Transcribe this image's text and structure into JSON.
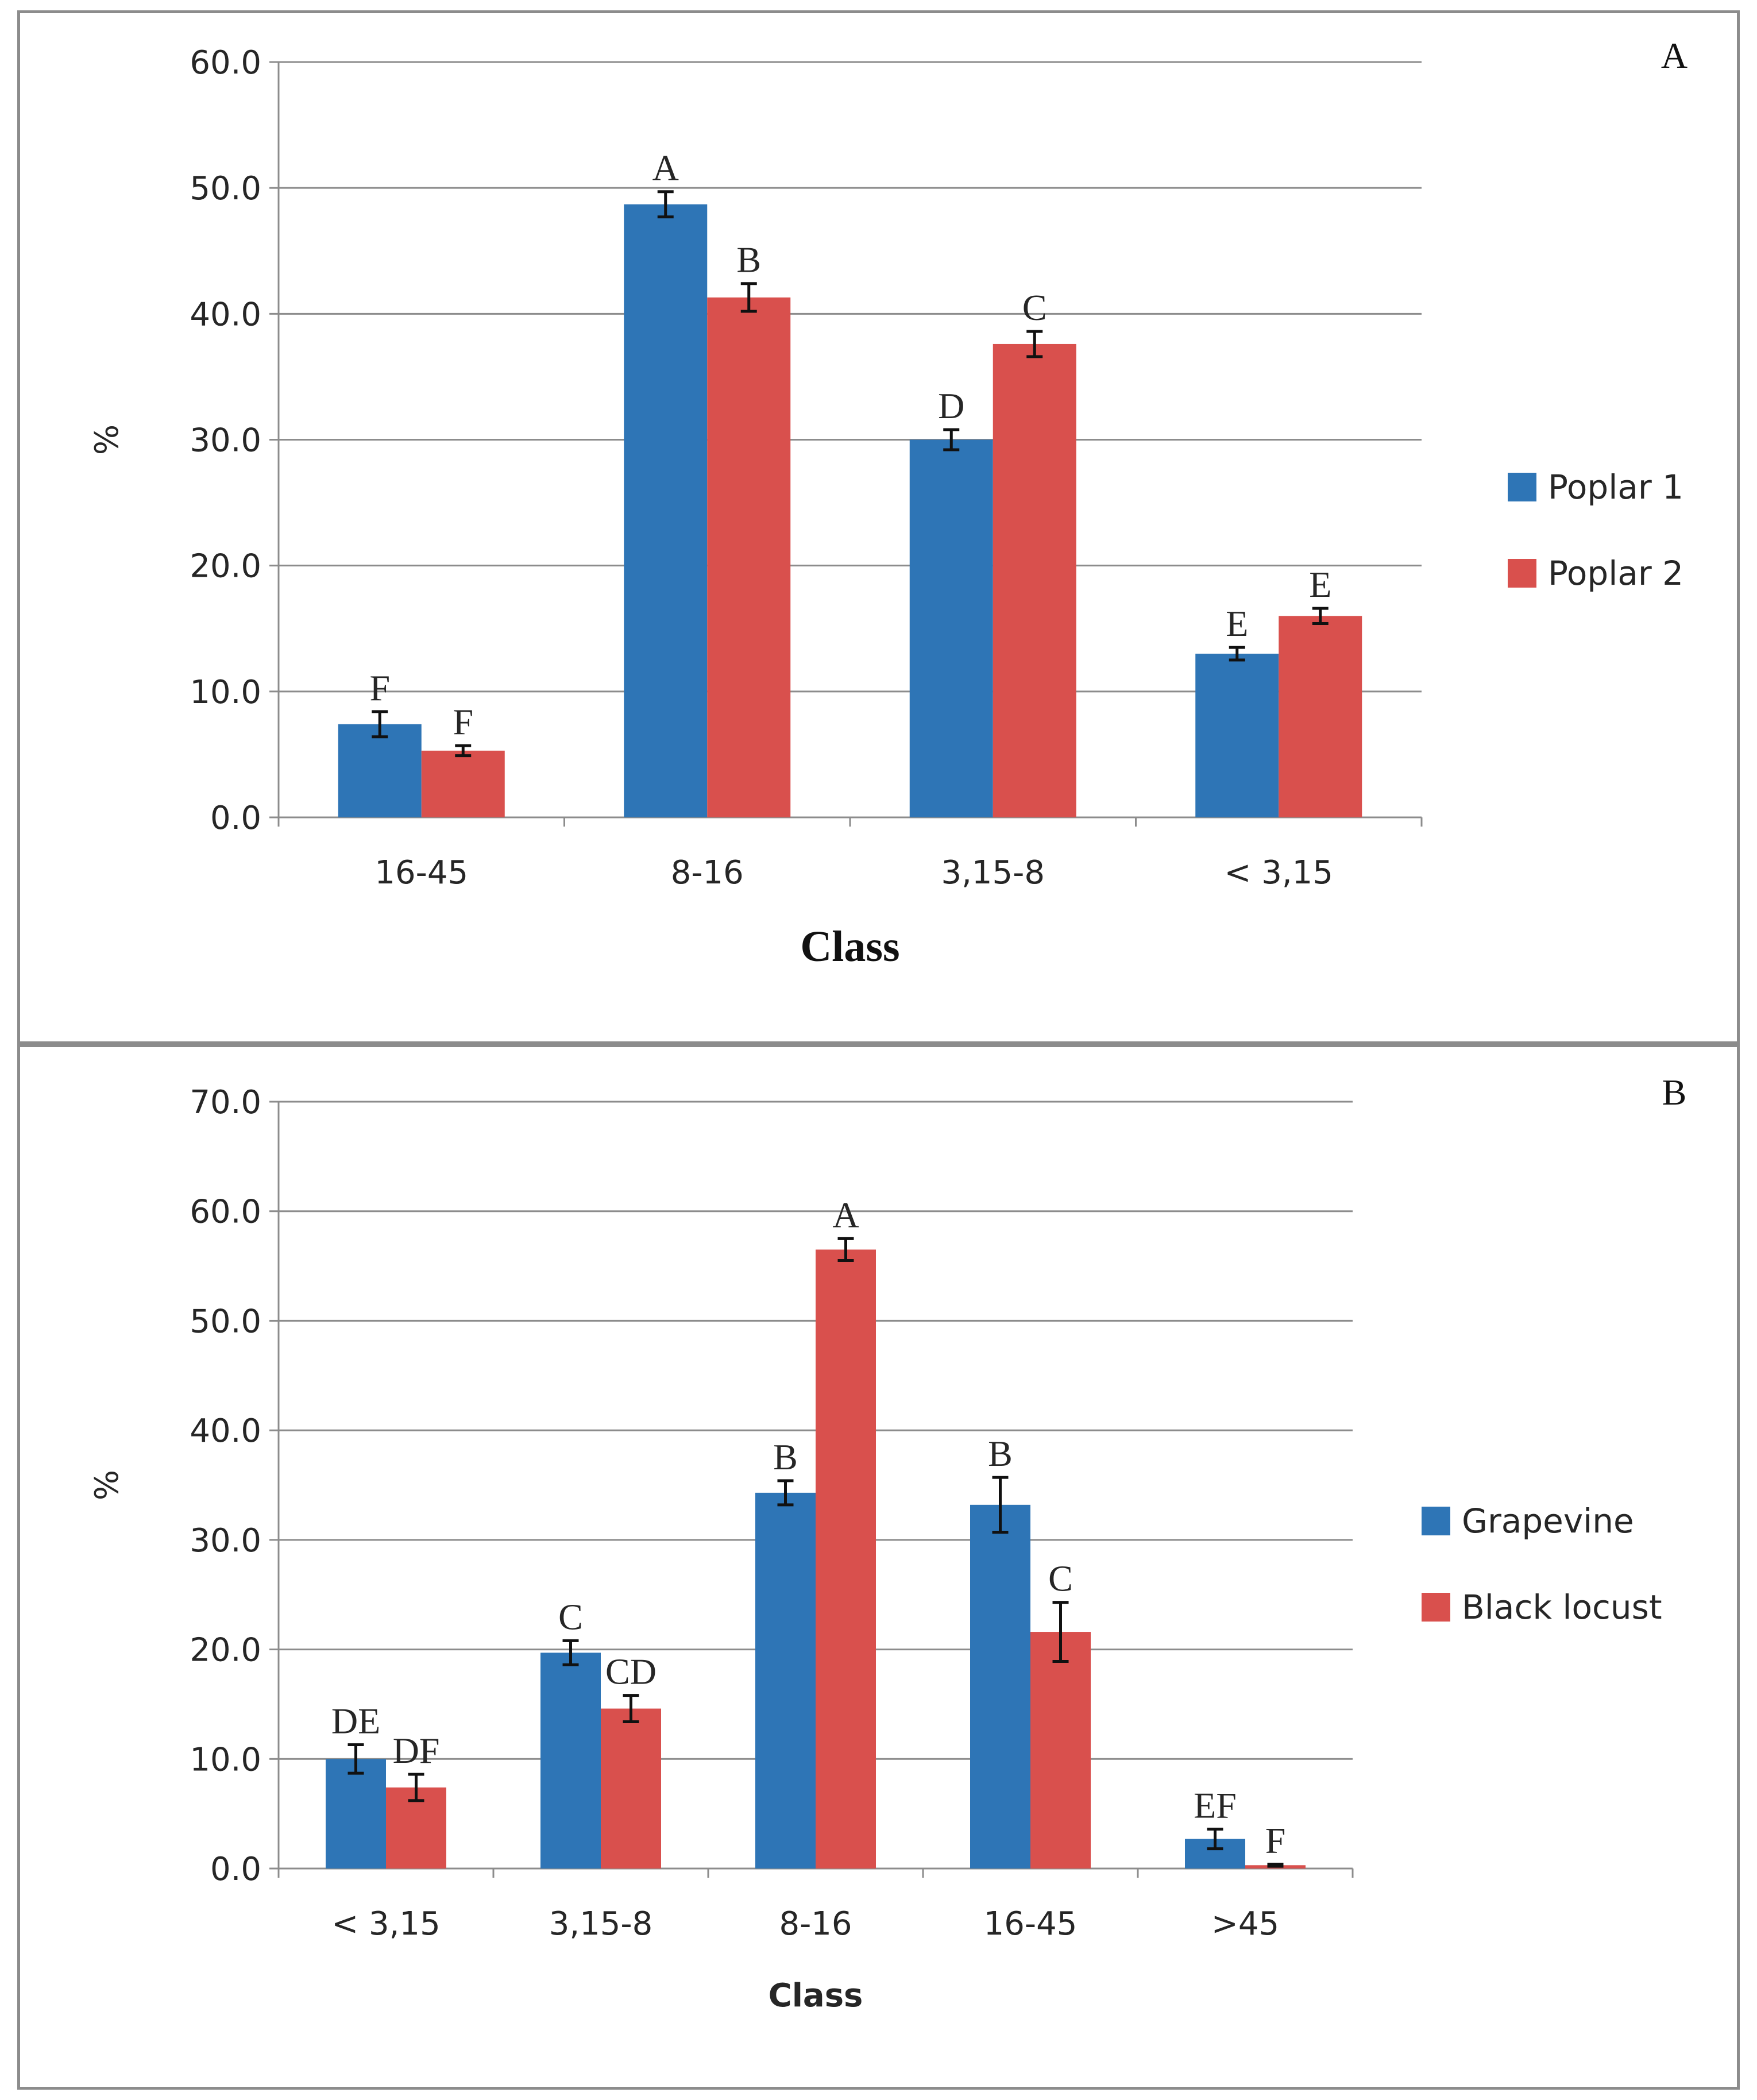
{
  "chart_data": [
    {
      "type": "bar",
      "panel_label": "A",
      "categories": [
        "16-45",
        "8-16",
        "3,15-8",
        "< 3,15"
      ],
      "series": [
        {
          "name": "Poplar 1",
          "color": "#2E75B6",
          "values": [
            7.4,
            48.7,
            30.0,
            13.0
          ],
          "errors": [
            1.0,
            1.0,
            0.8,
            0.5
          ],
          "letters": [
            "F",
            "A",
            "D",
            "E"
          ]
        },
        {
          "name": "Poplar 2",
          "color": "#D9504D",
          "values": [
            5.3,
            41.3,
            37.6,
            16.0
          ],
          "errors": [
            0.4,
            1.1,
            1.0,
            0.6
          ],
          "letters": [
            "F",
            "B",
            "C",
            "E"
          ]
        }
      ],
      "xlabel": "Class",
      "ylabel": "%",
      "ylim": [
        0,
        60
      ],
      "yticks": [
        "0.0",
        "10.0",
        "20.0",
        "30.0",
        "40.0",
        "50.0",
        "60.0"
      ],
      "grid": true,
      "legend": "right"
    },
    {
      "type": "bar",
      "panel_label": "B",
      "categories": [
        "< 3,15",
        "3,15-8",
        "8-16",
        "16-45",
        ">45"
      ],
      "series": [
        {
          "name": "Grapevine",
          "color": "#2E75B6",
          "values": [
            10.0,
            19.7,
            34.3,
            33.2,
            2.7
          ],
          "errors": [
            1.3,
            1.1,
            1.1,
            2.5,
            0.9
          ],
          "letters": [
            "DE",
            "C",
            "B",
            "B",
            "EF"
          ]
        },
        {
          "name": "Black locust",
          "color": "#D9504D",
          "values": [
            7.4,
            14.6,
            56.5,
            21.6,
            0.3
          ],
          "errors": [
            1.2,
            1.2,
            1.0,
            2.7,
            0.1
          ],
          "letters": [
            "DF",
            "CD",
            "A",
            "C",
            "F"
          ]
        }
      ],
      "xlabel": "Class",
      "ylabel": "%",
      "ylim": [
        0,
        70
      ],
      "yticks": [
        "0.0",
        "10.0",
        "20.0",
        "30.0",
        "40.0",
        "50.0",
        "60.0",
        "70.0"
      ],
      "grid": true,
      "legend": "right"
    }
  ]
}
